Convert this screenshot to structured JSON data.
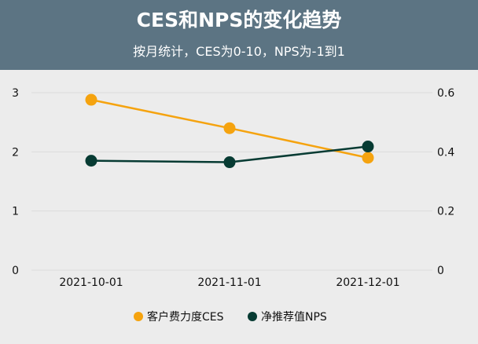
{
  "header": {
    "title": "CES和NPS的变化趋势",
    "subtitle": "按月统计，CES为0-10，NPS为-1到1"
  },
  "chart_data": {
    "type": "line",
    "title": "CES和NPS的变化趋势",
    "subtitle": "按月统计，CES为0-10，NPS为-1到1",
    "categories": [
      "2021-10-01",
      "2021-11-01",
      "2021-12-01"
    ],
    "y_left": {
      "ticks": [
        0,
        1,
        2,
        3
      ],
      "tick_labels": [
        "0",
        "1",
        "2",
        "3"
      ],
      "ylim": [
        0,
        3.3
      ]
    },
    "y_right": {
      "ticks": [
        0,
        0.2,
        0.4,
        0.6
      ],
      "tick_labels": [
        "0",
        "0.2",
        "0.4",
        "0.6"
      ],
      "ylim": [
        0,
        0.66
      ]
    },
    "series": [
      {
        "name": "客户费力度CES",
        "axis": "left",
        "color": "#f5a30f",
        "values": [
          2.88,
          2.4,
          1.9
        ]
      },
      {
        "name": "净推荐值NPS",
        "axis": "right",
        "color": "#073b33",
        "values": [
          0.37,
          0.365,
          0.418
        ]
      }
    ],
    "grid": true,
    "legend": "bottom-center"
  }
}
